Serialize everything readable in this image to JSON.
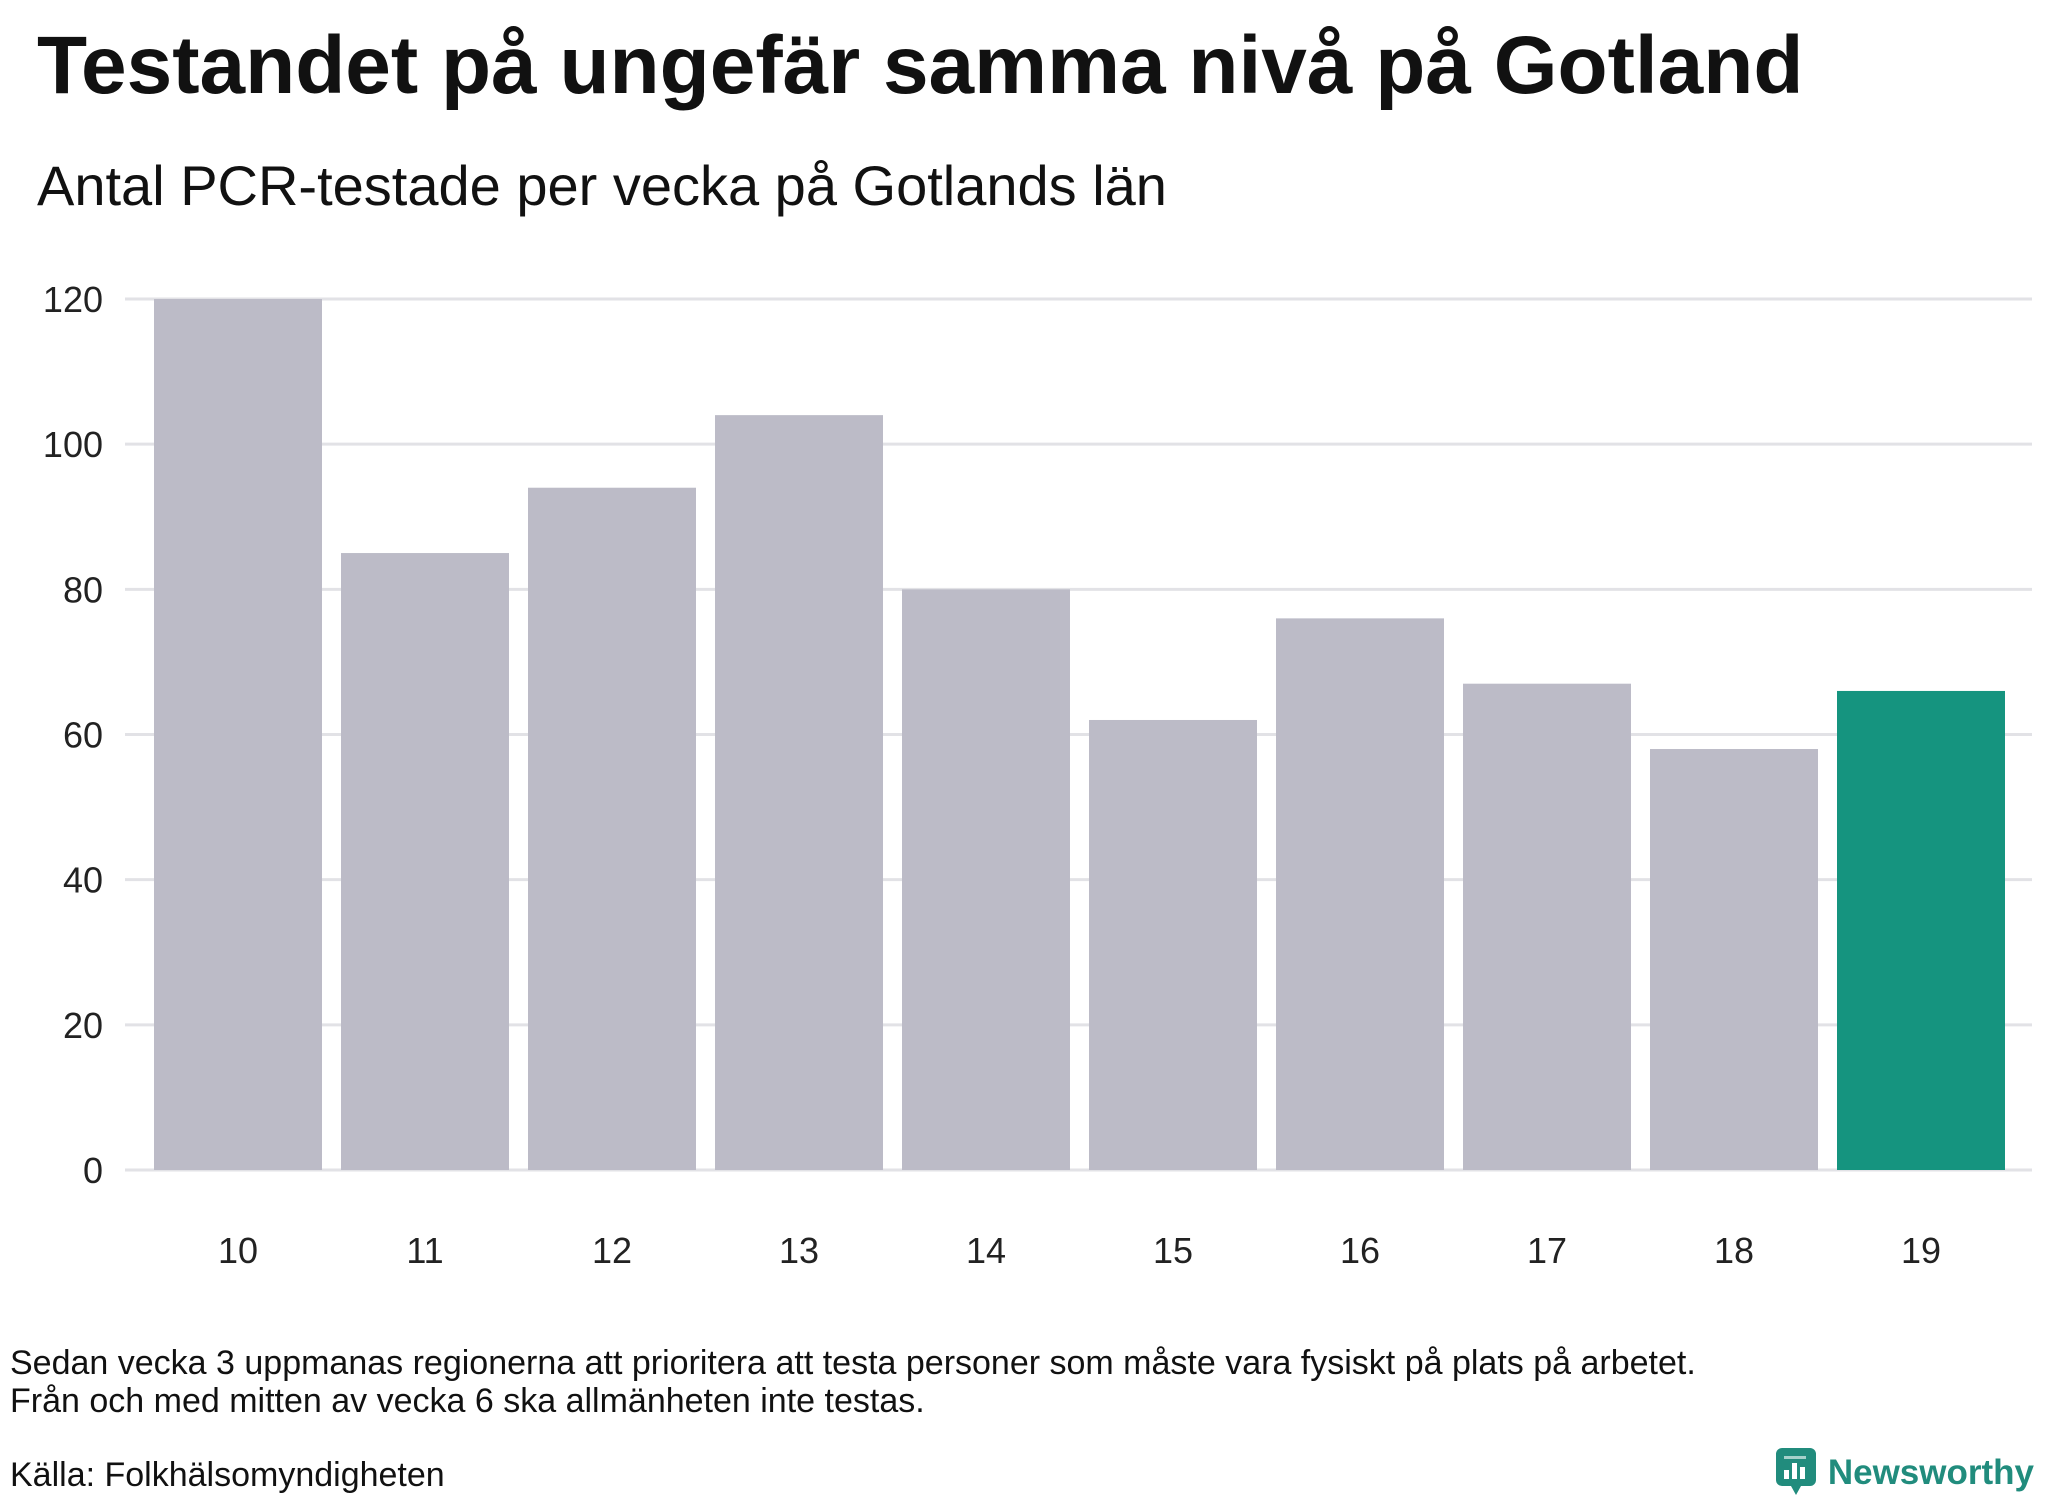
{
  "chart_data": {
    "type": "bar",
    "title": "Testandet på ungefär samma nivå på Gotland",
    "subtitle": "Antal PCR-testade per vecka på Gotlands län",
    "categories": [
      "10",
      "11",
      "12",
      "13",
      "14",
      "15",
      "16",
      "17",
      "18",
      "19"
    ],
    "values": [
      120,
      85,
      94,
      104,
      80,
      62,
      76,
      67,
      58,
      66
    ],
    "ylim": [
      0,
      120
    ],
    "yticks": [
      0,
      20,
      40,
      60,
      80,
      100,
      120
    ],
    "grid": true,
    "highlight_category": "19",
    "bar_color": "#bcbbc7",
    "highlight_color": "#15947f"
  },
  "notes": [
    "Sedan vecka 3 uppmanas regionerna att prioritera att testa personer som måste vara fysiskt på plats på arbetet.",
    "Från och med mitten av vecka 6 ska allmänheten inte testas."
  ],
  "source": "Källa: Folkhälsomyndigheten",
  "brand": {
    "name": "Newsworthy",
    "icon": "newsworthy-logo-icon",
    "color": "#218c7d"
  }
}
